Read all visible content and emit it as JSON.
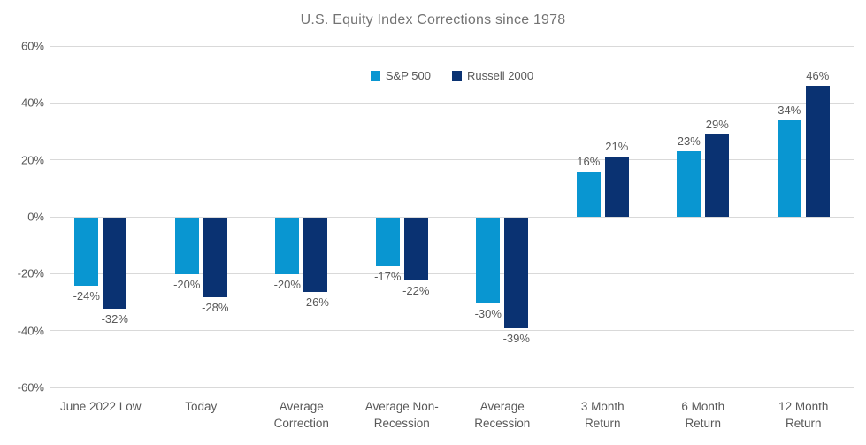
{
  "chart_data": {
    "type": "bar",
    "title": "U.S. Equity Index Corrections since 1978",
    "categories": [
      "June 2022 Low",
      "Today",
      "Average\nCorrection",
      "Average Non-\nRecession",
      "Average\nRecession",
      "3 Month\nReturn",
      "6 Month\nReturn",
      "12 Month\nReturn"
    ],
    "series": [
      {
        "name": "S&P 500",
        "color": "#0996D1",
        "values": [
          -24,
          -20,
          -20,
          -17,
          -30,
          16,
          23,
          34
        ]
      },
      {
        "name": "Russell 2000",
        "color": "#0A3272",
        "values": [
          -32,
          -28,
          -26,
          -22,
          -39,
          21,
          29,
          46
        ]
      }
    ],
    "value_labels": [
      [
        "-24%",
        "-20%",
        "-20%",
        "-17%",
        "-30%",
        "16%",
        "23%",
        "34%"
      ],
      [
        "-32%",
        "-28%",
        "-26%",
        "-22%",
        "-39%",
        "21%",
        "29%",
        "46%"
      ]
    ],
    "ylim": [
      -60,
      60
    ],
    "ytick_step": 20,
    "yticks": [
      "60%",
      "40%",
      "20%",
      "0%",
      "-20%",
      "-40%",
      "-60%"
    ],
    "grid": true,
    "legend_position": "top-center",
    "value_label_format": "percent"
  },
  "colors": {
    "sp500": "#0996D1",
    "russell2000": "#0A3272",
    "gridline": "#d9d9d9",
    "axis_text": "#595959",
    "title_text": "#737373",
    "background": "#FFFFFF"
  }
}
